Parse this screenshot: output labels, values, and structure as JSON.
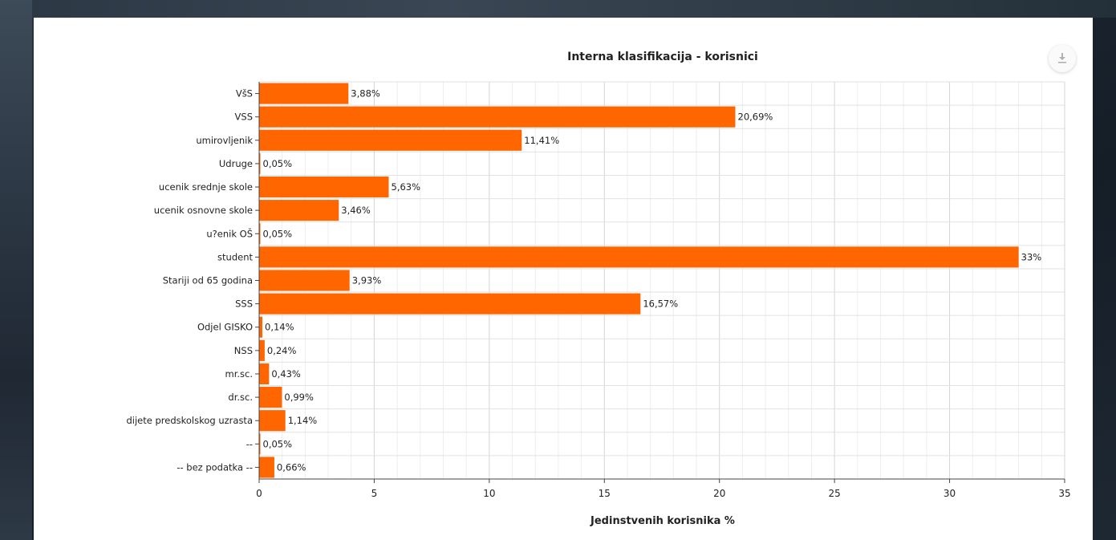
{
  "chart_data": {
    "type": "bar",
    "orientation": "horizontal",
    "title": "Interna klasifikacija - korisnici",
    "xlabel": "Jedinstvenih korisnika %",
    "ylabel": "",
    "xlim": [
      0,
      35
    ],
    "x_ticks": [
      0,
      5,
      10,
      15,
      20,
      25,
      30,
      35
    ],
    "grid": true,
    "bar_color": "#ff6600",
    "categories": [
      "VšS",
      "VSS",
      "umirovljenik",
      "Udruge",
      "ucenik srednje skole",
      "ucenik osnovne skole",
      "u?enik OŠ",
      "student",
      "Stariji od 65 godina",
      "SSS",
      "Odjel GISKO",
      "NSS",
      "mr.sc.",
      "dr.sc.",
      "dijete predskolskog uzrasta",
      "--",
      "-- bez podatka --"
    ],
    "values": [
      3.88,
      20.69,
      11.41,
      0.05,
      5.63,
      3.46,
      0.05,
      33,
      3.93,
      16.57,
      0.14,
      0.24,
      0.43,
      0.99,
      1.14,
      0.05,
      0.66
    ],
    "data_labels": [
      "3,88%",
      "20,69%",
      "11,41%",
      "0,05%",
      "5,63%",
      "3,46%",
      "0,05%",
      "33%",
      "3,93%",
      "16,57%",
      "0,14%",
      "0,24%",
      "0,43%",
      "0,99%",
      "1,14%",
      "0,05%",
      "0,66%"
    ]
  },
  "toolbar": {
    "download_icon": "download-icon"
  }
}
